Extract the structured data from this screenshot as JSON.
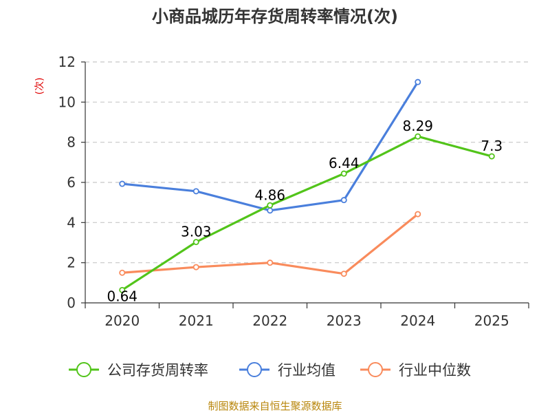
{
  "chart_data": {
    "type": "line",
    "title": "小商品城历年存货周转率情况(次)",
    "ylabel": "(次)",
    "categories": [
      "2020",
      "2021",
      "2022",
      "2023",
      "2024",
      "2025"
    ],
    "ylim": [
      0,
      12
    ],
    "yticks": [
      0,
      2,
      4,
      6,
      8,
      10,
      12
    ],
    "grid": true,
    "legend_position": "bottom",
    "series": [
      {
        "name": "公司存货周转率",
        "color": "#52c41a",
        "values": [
          0.64,
          3.03,
          4.86,
          6.44,
          8.29,
          7.3
        ],
        "labels": [
          "0.64",
          "3.03",
          "4.86",
          "6.44",
          "8.29",
          "7.3"
        ]
      },
      {
        "name": "行业均值",
        "color": "#4a7fdc",
        "values": [
          5.93,
          5.56,
          4.6,
          5.12,
          11.0,
          null
        ]
      },
      {
        "name": "行业中位数",
        "color": "#f98b5c",
        "values": [
          1.5,
          1.78,
          2.0,
          1.45,
          4.42,
          null
        ]
      }
    ]
  },
  "source": "制图数据来自恒生聚源数据库"
}
